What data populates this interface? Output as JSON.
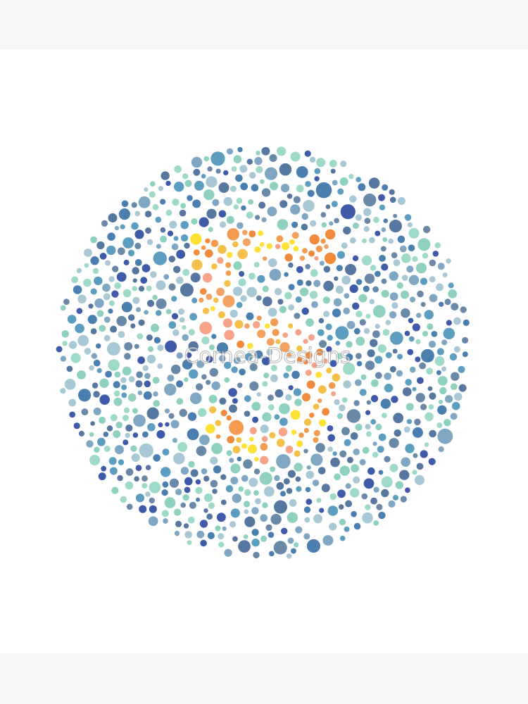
{
  "watermark": "Cornea-Designs"
}
